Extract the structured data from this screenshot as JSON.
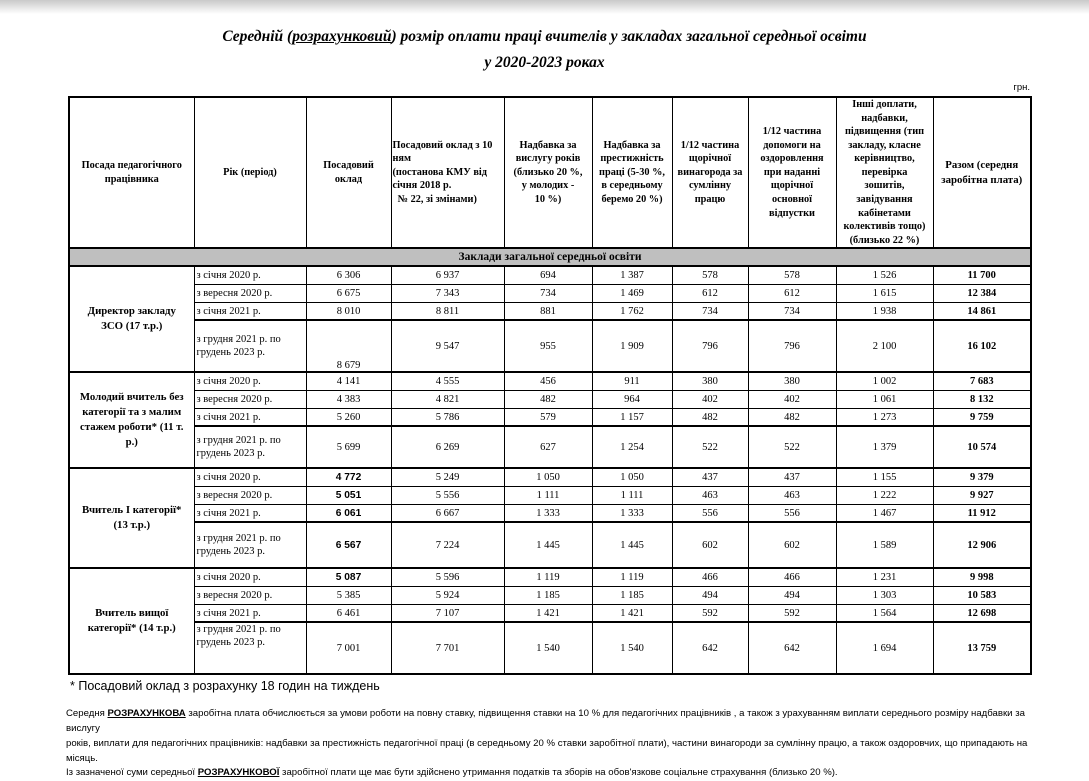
{
  "page": {
    "title_line1_segments": [
      {
        "text": "Середній ("
      },
      {
        "text": "розрахунковий",
        "underline": true
      },
      {
        "text": ") розмір оплати праці вчителів у закладах загальної середньої освіти"
      }
    ],
    "title_line2": "у 2020-2023 роках",
    "unit_label": "грн."
  },
  "table": {
    "columns": [
      "Посада педагогічного\nпрацівника",
      "Рік (період)",
      "Посадовий\nоклад",
      "Посадовий оклад з 10\nням\n(постанова КМУ від\nсічня 2018 р.\n  № 22, зі змінами)",
      "Надбавка за\nвислугу років\n(близько 20 %,\nу молодих -\n10 %)",
      "Надбавка за\nпрестижність\nпраці (5-30 %,\nв середньому\nберемо 20 %)",
      "1/12 частина\nщорічної\nвинагорода за\nсумлінну\nпрацю",
      "1/12 частина\nдопомоги на\nоздоровлення\nпри наданні\nщорічної\nосновної\nвідпустки",
      "Інші доплати,\nнадбавки,\nпідвищення (тип\nзакладу, класне\nкерівництво,\nперевірка\nзошитів,\nзавідування\nкабінетами\nколективів тощо)\n(близько 22 %)",
      "Разом (середня\nзаробітна плата)"
    ],
    "section_header": "Заклади загальної середньої освіти",
    "groups": [
      {
        "position": "Директор закладу\nЗСО  (17 т.р.)",
        "rows": [
          {
            "period": "з січня 2020 р.",
            "values": [
              "6 306",
              "6 937",
              "694",
              "1 387",
              "578",
              "578",
              "1 526",
              "11 700"
            ]
          },
          {
            "period": "з вересня 2020 р.",
            "values": [
              "6 675",
              "7 343",
              "734",
              "1 469",
              "612",
              "612",
              "1 615",
              "12 384"
            ]
          },
          {
            "period": "з січня 2021 р.",
            "values": [
              "8 010",
              "8 811",
              "881",
              "1 762",
              "734",
              "734",
              "1 938",
              "14 861"
            ]
          },
          {
            "period": "з грудня 2021 р. по грудень 2023 р.",
            "values": [
              "8 679",
              "9 547",
              "955",
              "1 909",
              "796",
              "796",
              "2 100",
              "16 102"
            ]
          }
        ]
      },
      {
        "position": "Молодий вчитель без\nкатегорії  та з малим\nстажем роботи* (11 т.\nр.)",
        "rows": [
          {
            "period": "з січня 2020 р.",
            "values": [
              "4 141",
              "4 555",
              "456",
              "911",
              "380",
              "380",
              "1 002",
              "7 683"
            ]
          },
          {
            "period": "з вересня 2020 р.",
            "values": [
              "4 383",
              "4 821",
              "482",
              "964",
              "402",
              "402",
              "1 061",
              "8 132"
            ]
          },
          {
            "period": "з січня 2021 р.",
            "values": [
              "5 260",
              "5 786",
              "579",
              "1 157",
              "482",
              "482",
              "1 273",
              "9 759"
            ]
          },
          {
            "period": "з грудня 2021 р. по грудень 2023 р.",
            "values": [
              "5 699",
              "6 269",
              "627",
              "1 254",
              "522",
              "522",
              "1 379",
              "10 574"
            ]
          }
        ]
      },
      {
        "position": "Вчитель І категорії*\n(13 т.р.)",
        "rows": [
          {
            "period": "з січня 2020 р.",
            "values": [
              "4 772",
              "5 249",
              "1 050",
              "1 050",
              "437",
              "437",
              "1 155",
              "9 379"
            ]
          },
          {
            "period": "з вересня 2020 р.",
            "values": [
              "5 051",
              "5 556",
              "1 111",
              "1 111",
              "463",
              "463",
              "1 222",
              "9 927"
            ]
          },
          {
            "period": "з січня 2021 р.",
            "values": [
              "6 061",
              "6 667",
              "1 333",
              "1 333",
              "556",
              "556",
              "1 467",
              "11 912"
            ]
          },
          {
            "period": "з грудня 2021 р. по грудень 2023 р.",
            "values": [
              "6 567",
              "7 224",
              "1 445",
              "1 445",
              "602",
              "602",
              "1 589",
              "12 906"
            ]
          }
        ]
      },
      {
        "position": "Вчитель вищої\nкатегорії* (14 т.р.)",
        "rows": [
          {
            "period": "з січня 2020 р.",
            "values": [
              "5 087",
              "5 596",
              "1 119",
              "1 119",
              "466",
              "466",
              "1 231",
              "9 998"
            ]
          },
          {
            "period": "з вересня 2020 р.",
            "values": [
              "5 385",
              "5 924",
              "1 185",
              "1 185",
              "494",
              "494",
              "1 303",
              "10 583"
            ]
          },
          {
            "period": "з січня 2021 р.",
            "values": [
              "6 461",
              "7 107",
              "1 421",
              "1 421",
              "592",
              "592",
              "1 564",
              "12 698"
            ]
          },
          {
            "period": "з грудня 2021 р. по грудень 2023 р.",
            "values": [
              "7 001",
              "7 701",
              "1 540",
              "1 540",
              "642",
              "642",
              "1 694",
              "13 759"
            ]
          }
        ]
      }
    ]
  },
  "footnote": "* Посадовий оклад з розрахунку 18 годин на тиждень",
  "note_lines": [
    [
      {
        "text": "Середня "
      },
      {
        "text": "РОЗРАХУНКОВА",
        "bold_underline": true
      },
      {
        "text": " заробітна плата обчислюється за умови роботи на повну ставку, підвищення ставки на 10 % для педагогічних працівників , а також з урахуванням виплати середнього розміру надбавки за вислугу"
      }
    ],
    [
      {
        "text": "років, виплати для педагогічних працівників: надбавки за престижність педагогічної праці (в середньому 20 % ставки заробітної плати), частини винагороди за сумлінну працю, а також  оздоровчих, що припадають на місяць."
      }
    ],
    [
      {
        "text": "Із зазначеної суми середньої "
      },
      {
        "text": "РОЗРАХУНКОВОЇ",
        "bold_underline": true
      },
      {
        "text": " заробітної плати ще має бути здійснено утримання податків та зборів на обов'язкове соціальне страхування (близько 20 %)."
      }
    ]
  ]
}
